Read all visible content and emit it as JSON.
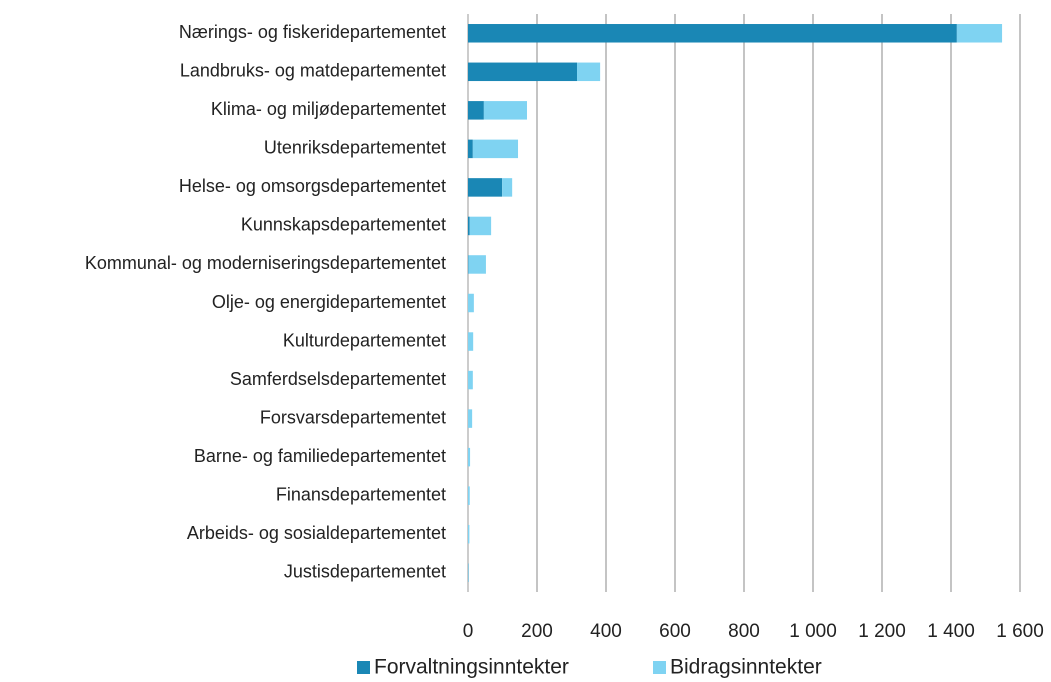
{
  "chart_data": {
    "type": "stacked_bar_horizontal",
    "categories": [
      "Nærings- og fiskeridepartementet",
      "Landbruks- og matdepartementet",
      "Klima- og miljødepartementet",
      "Utenriksdepartementet",
      "Helse- og omsorgsdepartementet",
      "Kunnskapsdepartementet",
      "Kommunal- og moderniseringsdepartementet",
      "Olje- og energidepartementet",
      "Kulturdepartementet",
      "Samferdselsdepartementet",
      "Forsvarsdepartementet",
      "Barne- og familiedepartementet",
      "Finansdepartementet",
      "Arbeids- og sosialdepartementet",
      "Justisdepartementet"
    ],
    "series": [
      {
        "name": "Forvaltningsinntekter",
        "color": "#1a87b5",
        "values": [
          1417,
          316,
          46,
          14,
          99,
          5,
          1,
          0,
          0,
          0,
          0,
          0,
          0,
          0,
          1
        ]
      },
      {
        "name": "Bidragsinntekter",
        "color": "#7fd3f2",
        "values": [
          131,
          67,
          125,
          131,
          29,
          62,
          51,
          17,
          15,
          14,
          12,
          6,
          5,
          4,
          1
        ]
      }
    ],
    "xlim": [
      0,
      1600
    ],
    "xticks": [
      0,
      200,
      400,
      600,
      800,
      {
        "value": 1000,
        "label": "1 000"
      },
      {
        "value": 1200,
        "label": "1 200"
      },
      {
        "value": 1400,
        "label": "1 400"
      },
      {
        "value": 1600,
        "label": "1 600"
      }
    ],
    "grid": true,
    "legend": "bottom"
  }
}
